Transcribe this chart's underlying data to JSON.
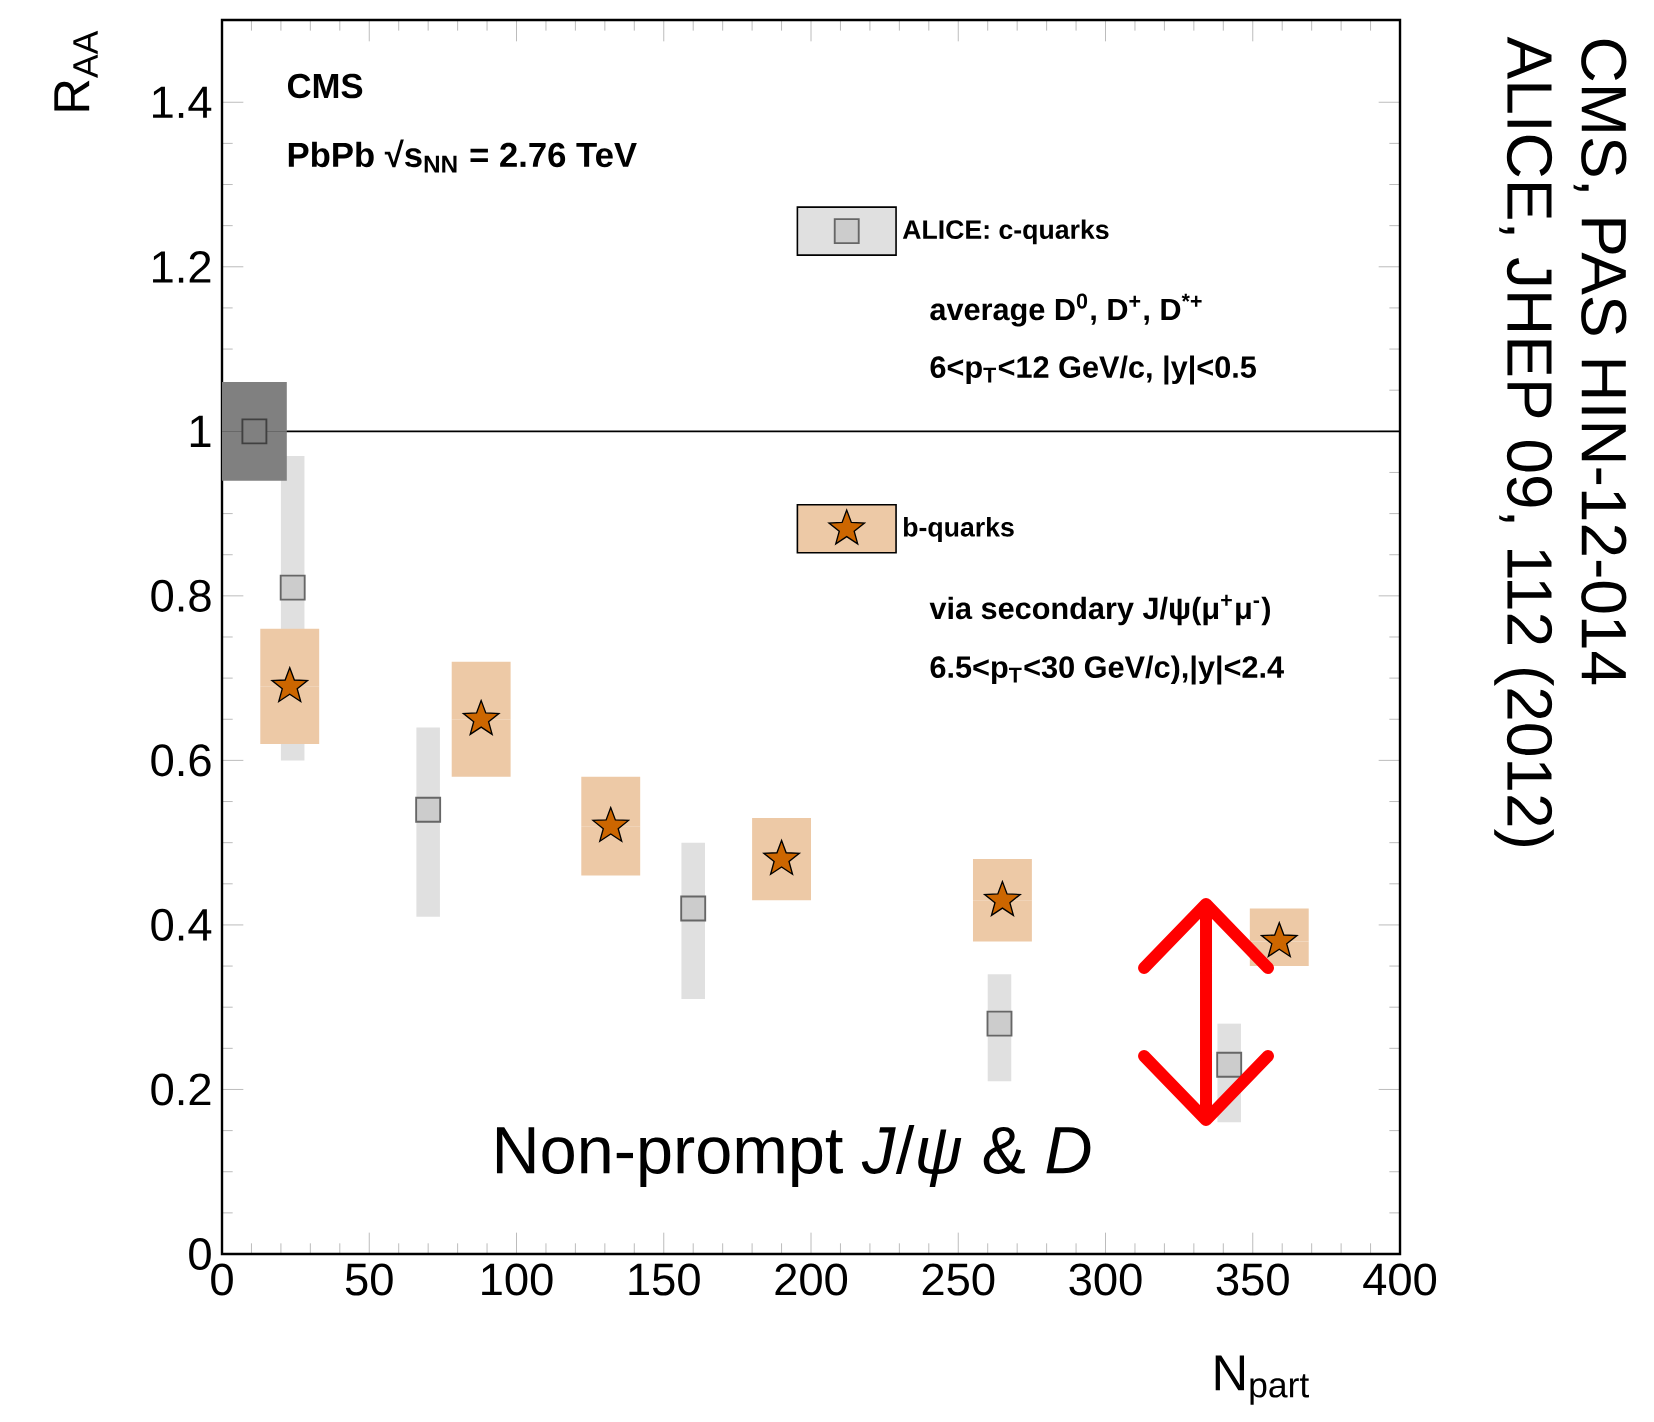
{
  "chart_data": {
    "type": "scatter",
    "xlabel": "N$_{part}$",
    "ylabel": "R$_{AA}$",
    "xlim": [
      0,
      400
    ],
    "ylim": [
      0,
      1.5
    ],
    "xticks": [
      0,
      50,
      100,
      150,
      200,
      250,
      300,
      350,
      400
    ],
    "yticks": [
      0,
      0.2,
      0.4,
      0.6,
      0.8,
      1,
      1.2,
      1.4
    ],
    "legend": "right",
    "series": [
      {
        "name": "ALICE: c-quarks",
        "color": "#cccccc",
        "marker": "square",
        "x": [
          24,
          70,
          160,
          264,
          342
        ],
        "values": [
          0.81,
          0.54,
          0.42,
          0.28,
          0.23
        ],
        "errors": [
          [
            0.6,
            0.97
          ],
          [
            0.41,
            0.64
          ],
          [
            0.31,
            0.5
          ],
          [
            0.21,
            0.34
          ],
          [
            0.16,
            0.28
          ]
        ]
      },
      {
        "name": "b-quarks",
        "color": "#cc6600",
        "marker": "star",
        "x": [
          23,
          88,
          132,
          190,
          265,
          359
        ],
        "values": [
          0.69,
          0.65,
          0.52,
          0.48,
          0.43,
          0.38
        ],
        "errors": [
          [
            0.62,
            0.76
          ],
          [
            0.58,
            0.72
          ],
          [
            0.46,
            0.58
          ],
          [
            0.43,
            0.53
          ],
          [
            0.38,
            0.48
          ],
          [
            0.35,
            0.42
          ]
        ]
      },
      {
        "color": "#808080",
        "marker": "square",
        "x": [
          11
        ],
        "values": [
          1
        ],
        "errors": [
          [
            0.94,
            1.06
          ]
        ]
      }
    ],
    "ref_lines": [
      {
        "axis": "y",
        "value": 1,
        "color": "#000000"
      }
    ],
    "annotations": [
      "CMS",
      "PbPb √s$_{NN}$ = 2.76 TeV",
      "average D$^{0}$, D$^{+}$, D$^{*+}$",
      "6<p$_{T}$<12 GeV/c, |y|<0.5",
      "via secondary J/ψ(μ$^{+}$μ$^{-}$)",
      "6.5<p$_{T}$<30 GeV/c),|y|<2.4",
      "Non-prompt *J*/*ψ* & *D*",
      "CMS, PAS HIN-12-014",
      "ALICE, JHEP 09, 112 (2012)"
    ]
  }
}
